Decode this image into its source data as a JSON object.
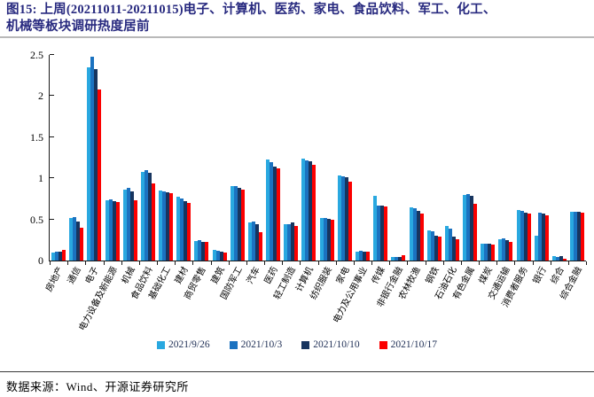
{
  "figure": {
    "title": "图15:  上周(20211011-20211015)电子、计算机、医药、家电、食品饮料、军工、化工、\n机械等板块调研热度居前",
    "source": "数据来源：Wind、开源证券研究所"
  },
  "chart_data": {
    "type": "bar",
    "title": "",
    "xlabel": "",
    "ylabel": "",
    "ylim": [
      0,
      2.5
    ],
    "yticks": [
      "0",
      "0.5",
      "1",
      "1.5",
      "2",
      "2.5"
    ],
    "grid": false,
    "legend_position": "bottom",
    "categories": [
      "房地产",
      "通信",
      "电子",
      "电力设备及新能源",
      "机械",
      "食品饮料",
      "基础化工",
      "建材",
      "商贸零售",
      "建筑",
      "国防军工",
      "汽车",
      "医药",
      "轻工制造",
      "计算机",
      "纺织服装",
      "家电",
      "电力及公用事业",
      "传媒",
      "非银行金融",
      "农林牧渔",
      "钢铁",
      "石油石化",
      "有色金属",
      "煤炭",
      "交通运输",
      "消费者服务",
      "银行",
      "综合",
      "综合金融"
    ],
    "series": [
      {
        "name": "2021/9/26",
        "color": "#29A8E0",
        "values": [
          0.1,
          0.52,
          2.35,
          0.73,
          0.86,
          1.08,
          0.85,
          0.78,
          0.24,
          0.13,
          0.9,
          0.46,
          1.23,
          0.44,
          1.24,
          0.52,
          1.03,
          0.11,
          0.79,
          0.04,
          0.65,
          0.37,
          0.42,
          0.8,
          0.2,
          0.26,
          0.61,
          0.3,
          0.05,
          0.59
        ]
      },
      {
        "name": "2021/10/3",
        "color": "#1B72C0",
        "values": [
          0.11,
          0.53,
          2.48,
          0.74,
          0.88,
          1.1,
          0.84,
          0.75,
          0.25,
          0.12,
          0.91,
          0.47,
          1.2,
          0.44,
          1.22,
          0.52,
          1.02,
          0.12,
          0.67,
          0.04,
          0.64,
          0.36,
          0.39,
          0.81,
          0.2,
          0.27,
          0.6,
          0.58,
          0.04,
          0.59
        ]
      },
      {
        "name": "2021/10/10",
        "color": "#17355F",
        "values": [
          0.11,
          0.47,
          2.33,
          0.72,
          0.84,
          1.07,
          0.83,
          0.72,
          0.23,
          0.11,
          0.88,
          0.44,
          1.14,
          0.46,
          1.21,
          0.51,
          1.01,
          0.11,
          0.67,
          0.04,
          0.6,
          0.3,
          0.29,
          0.79,
          0.2,
          0.25,
          0.58,
          0.57,
          0.05,
          0.59
        ]
      },
      {
        "name": "2021/10/17",
        "color": "#FB0000",
        "values": [
          0.13,
          0.4,
          2.08,
          0.71,
          0.73,
          0.94,
          0.82,
          0.7,
          0.23,
          0.1,
          0.86,
          0.34,
          1.12,
          0.42,
          1.16,
          0.5,
          0.96,
          0.11,
          0.66,
          0.07,
          0.57,
          0.29,
          0.26,
          0.69,
          0.19,
          0.23,
          0.57,
          0.55,
          0.02,
          0.58
        ]
      }
    ]
  }
}
